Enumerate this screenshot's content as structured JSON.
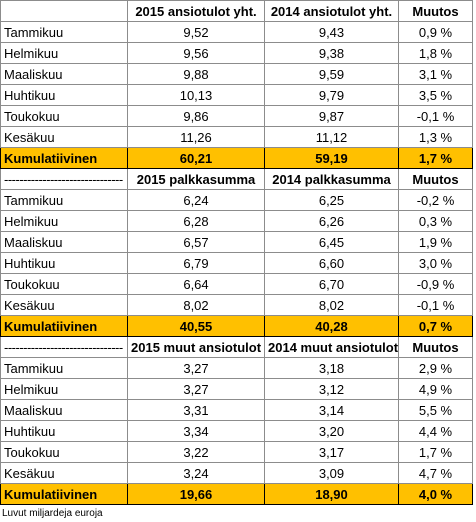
{
  "sections": [
    {
      "header": [
        "2015 ansiotulot yht.",
        "2014 ansiotulot yht.",
        "Muutos"
      ],
      "rows": [
        [
          "Tammikuu",
          "9,52",
          "9,43",
          "0,9 %"
        ],
        [
          "Helmikuu",
          "9,56",
          "9,38",
          "1,8 %"
        ],
        [
          "Maaliskuu",
          "9,88",
          "9,59",
          "3,1 %"
        ],
        [
          "Huhtikuu",
          "10,13",
          "9,79",
          "3,5 %"
        ],
        [
          "Toukokuu",
          "9,86",
          "9,87",
          "-0,1 %"
        ],
        [
          "Kesäkuu",
          "11,26",
          "11,12",
          "1,3 %"
        ]
      ],
      "total": [
        "Kumulatiivinen",
        "60,21",
        "59,19",
        "1,7 %"
      ]
    },
    {
      "header": [
        "-------------------------------",
        "2015 palkkasumma",
        "2014 palkkasumma",
        "Muutos"
      ],
      "rows": [
        [
          "Tammikuu",
          "6,24",
          "6,25",
          "-0,2 %"
        ],
        [
          "Helmikuu",
          "6,28",
          "6,26",
          "0,3 %"
        ],
        [
          "Maaliskuu",
          "6,57",
          "6,45",
          "1,9 %"
        ],
        [
          "Huhtikuu",
          "6,79",
          "6,60",
          "3,0 %"
        ],
        [
          "Toukokuu",
          "6,64",
          "6,70",
          "-0,9 %"
        ],
        [
          "Kesäkuu",
          "8,02",
          "8,02",
          "-0,1 %"
        ]
      ],
      "total": [
        "Kumulatiivinen",
        "40,55",
        "40,28",
        "0,7 %"
      ]
    },
    {
      "header": [
        "-------------------------------",
        "2015 muut ansiotulot",
        "2014 muut ansiotulot",
        "Muutos"
      ],
      "rows": [
        [
          "Tammikuu",
          "3,27",
          "3,18",
          "2,9 %"
        ],
        [
          "Helmikuu",
          "3,27",
          "3,12",
          "4,9 %"
        ],
        [
          "Maaliskuu",
          "3,31",
          "3,14",
          "5,5 %"
        ],
        [
          "Huhtikuu",
          "3,34",
          "3,20",
          "4,4 %"
        ],
        [
          "Toukokuu",
          "3,22",
          "3,17",
          "1,7 %"
        ],
        [
          "Kesäkuu",
          "3,24",
          "3,09",
          "4,7 %"
        ]
      ],
      "total": [
        "Kumulatiivinen",
        "19,66",
        "18,90",
        "4,0 %"
      ]
    }
  ],
  "footnote": "Luvut miljardeja euroja"
}
